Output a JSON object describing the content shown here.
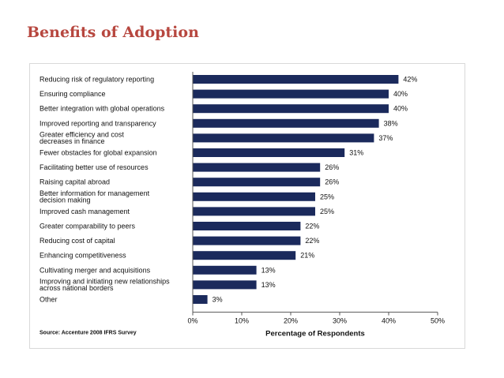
{
  "slide": {
    "title": "Benefits of Adoption"
  },
  "chart_data": {
    "type": "bar",
    "orientation": "horizontal",
    "title": "Benefits of Adoption",
    "xlabel": "Percentage of Respondents",
    "ylabel": "",
    "xlim": [
      0,
      50
    ],
    "xticks": [
      "0%",
      "10%",
      "20%",
      "30%",
      "40%",
      "50%"
    ],
    "bar_color": "#1b2a5c",
    "categories": [
      [
        "Reducing risk of regulatory reporting"
      ],
      [
        "Ensuring compliance"
      ],
      [
        "Better integration with global operations"
      ],
      [
        "Improved reporting and transparency"
      ],
      [
        "Greater efficiency and cost",
        "decreases in finance"
      ],
      [
        "Fewer obstacles for global expansion"
      ],
      [
        "Facilitating better use of resources"
      ],
      [
        "Raising capital abroad"
      ],
      [
        "Better information for management",
        "decision making"
      ],
      [
        "Improved cash management"
      ],
      [
        "Greater comparability to peers"
      ],
      [
        "Reducing cost of capital"
      ],
      [
        "Enhancing competitiveness"
      ],
      [
        "Cultivating merger and acquisitions"
      ],
      [
        "Improving and initiating new relationships",
        "across national borders"
      ],
      [
        "Other"
      ]
    ],
    "values": [
      42,
      40,
      40,
      38,
      37,
      31,
      26,
      26,
      25,
      25,
      22,
      22,
      21,
      13,
      13,
      3
    ],
    "value_labels": [
      "42%",
      "40%",
      "40%",
      "38%",
      "37%",
      "31%",
      "26%",
      "26%",
      "25%",
      "25%",
      "22%",
      "22%",
      "21%",
      "13%",
      "13%",
      "3%"
    ],
    "source": "Source: Accenture 2008 IFRS Survey"
  }
}
